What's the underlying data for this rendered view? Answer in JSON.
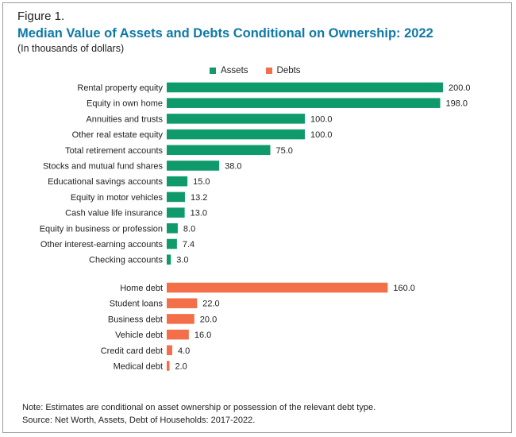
{
  "figure_label": "Figure 1.",
  "title": "Median Value of Assets and Debts Conditional on Ownership: 2022",
  "subtitle": "(In thousands of dollars)",
  "legend": [
    {
      "label": "Assets",
      "color": "#0f9a6b"
    },
    {
      "label": "Debts",
      "color": "#f26f4a"
    }
  ],
  "note": "Note: Estimates are conditional on asset ownership or possession of the relevant debt type.",
  "source": "Source: Net Worth, Assets, Debt of Households: 2017-2022.",
  "chart_data": {
    "type": "bar",
    "orientation": "horizontal",
    "grid": false,
    "legend_position": "top",
    "series": [
      {
        "name": "Assets",
        "color": "#0f9a6b",
        "categories": [
          "Rental property equity",
          "Equity in own home",
          "Annuities and trusts",
          "Other real estate equity",
          "Total retirement accounts",
          "Stocks and mutual fund shares",
          "Educational savings accounts",
          "Equity in motor vehicles",
          "Cash value life insurance",
          "Equity in business or profession",
          "Other interest-earning accounts",
          "Checking accounts"
        ],
        "values": [
          200.0,
          198.0,
          100.0,
          100.0,
          75.0,
          38.0,
          15.0,
          13.2,
          13.0,
          8.0,
          7.4,
          3.0
        ],
        "labels": [
          "200.0",
          "198.0",
          "100.0",
          "100.0",
          "75.0",
          "38.0",
          "15.0",
          "13.2",
          "13.0",
          "8.0",
          "7.4",
          "3.0"
        ]
      },
      {
        "name": "Debts",
        "color": "#f26f4a",
        "categories": [
          "Home debt",
          "Student loans",
          "Business debt",
          "Vehicle debt",
          "Credit card debt",
          "Medical debt"
        ],
        "values": [
          160.0,
          22.0,
          20.0,
          16.0,
          4.0,
          2.0
        ],
        "labels": [
          "160.0",
          "22.0",
          "20.0",
          "16.0",
          "4.0",
          "2.0"
        ]
      }
    ],
    "xlim": [
      0,
      200
    ]
  }
}
